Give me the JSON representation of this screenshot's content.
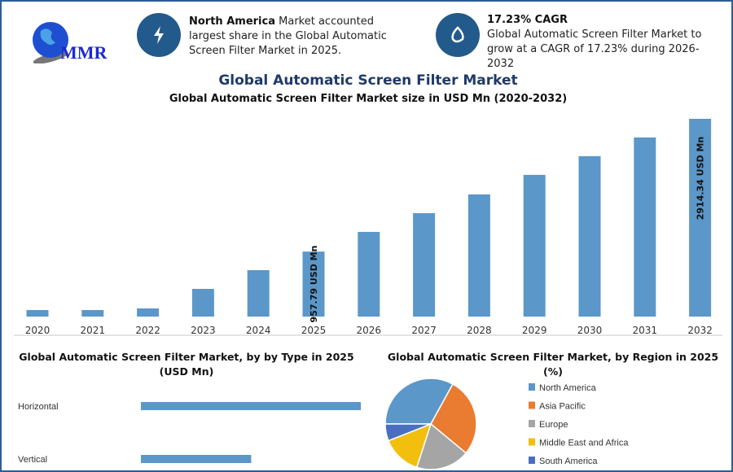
{
  "logo": {
    "text": "MMR"
  },
  "info_cards": [
    {
      "icon": "lightning-icon",
      "bold": "North America",
      "text": " Market accounted largest share in the Global Automatic Screen Filter Market in 2025."
    },
    {
      "icon": "droplet-icon",
      "bold": "17.23% CAGR",
      "text": "Global Automatic Screen Filter Market to grow at a CAGR of 17.23% during 2026-2032"
    }
  ],
  "colors": {
    "accent": "#235a8c",
    "bar": "#5b97c9",
    "title": "#1f3a68"
  },
  "main_title": "Global Automatic Screen Filter Market",
  "chart_data": [
    {
      "type": "bar",
      "title": "Global Automatic Screen Filter Market size in USD Mn (2020-2032)",
      "categories": [
        "2020",
        "2021",
        "2022",
        "2023",
        "2024",
        "2025",
        "2026",
        "2027",
        "2028",
        "2029",
        "2030",
        "2031",
        "2032"
      ],
      "values": [
        96,
        96,
        120,
        408,
        684,
        957.79,
        1248,
        1524,
        1800,
        2088,
        2364,
        2640,
        2914.34
      ],
      "data_labels": {
        "2025": "957.79 USD Mn",
        "2032": "2914.34 USD Mn"
      },
      "xlabel": "",
      "ylabel": "",
      "ylim": [
        0,
        2914.34
      ],
      "grid": false
    },
    {
      "type": "bar",
      "orientation": "horizontal",
      "title": "Global Automatic Screen Filter Market, by by Type in 2025 (USD Mn)",
      "categories": [
        "Horizontal",
        "Vertical"
      ],
      "values": [
        638,
        320
      ]
    },
    {
      "type": "pie",
      "title": "Global Automatic Screen Filter Market, by Region in 2025 (%)",
      "legend_position": "right",
      "slices": [
        {
          "name": "North America",
          "value": 33,
          "color": "#5b97c9"
        },
        {
          "name": "Asia Pacific",
          "value": 28,
          "color": "#e97c30"
        },
        {
          "name": "Europe",
          "value": 19,
          "color": "#a5a5a5"
        },
        {
          "name": "Middle East and Africa",
          "value": 14,
          "color": "#f2bf0f"
        },
        {
          "name": "South America",
          "value": 6,
          "color": "#4a6fc1"
        }
      ]
    }
  ]
}
